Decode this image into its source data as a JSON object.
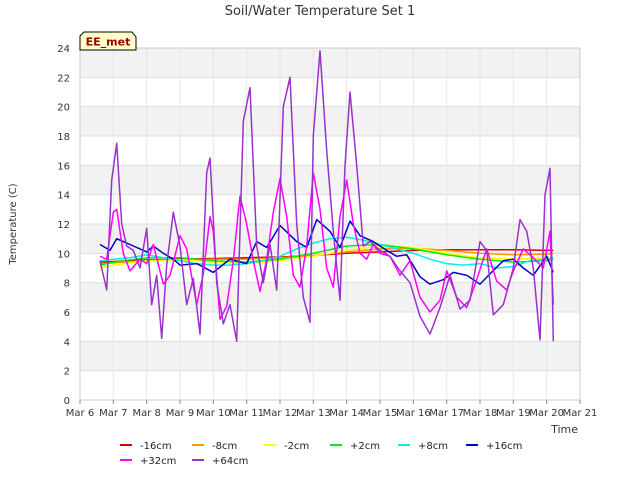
{
  "chart_data": {
    "type": "line",
    "title": "Soil/Water Temperature Set 1",
    "xlabel": "Time",
    "ylabel": "Temperature (C)",
    "xlim": [
      6,
      21
    ],
    "ylim": [
      0,
      24
    ],
    "x_ticks": [
      6,
      7,
      8,
      9,
      10,
      11,
      12,
      13,
      14,
      15,
      16,
      17,
      18,
      19,
      20,
      21
    ],
    "x_tick_labels": [
      "Mar 6",
      "Mar 7",
      "Mar 8",
      "Mar 9",
      "Mar 10",
      "Mar 11",
      "Mar 12",
      "Mar 13",
      "Mar 14",
      "Mar 15",
      "Mar 16",
      "Mar 17",
      "Mar 18",
      "Mar 19",
      "Mar 20",
      "Mar 21"
    ],
    "y_ticks": [
      0,
      2,
      4,
      6,
      8,
      10,
      12,
      14,
      16,
      18,
      20,
      22,
      24
    ],
    "grid": true,
    "annotation": "EE_met",
    "legend_position": "bottom",
    "series": [
      {
        "name": "-16cm",
        "color": "#dd0000",
        "x": [
          6.6,
          8,
          9,
          10,
          11,
          12,
          13,
          14,
          15,
          16,
          17,
          18,
          19,
          20,
          20.2
        ],
        "y": [
          9.4,
          9.55,
          9.6,
          9.65,
          9.7,
          9.75,
          9.85,
          10.0,
          10.1,
          10.2,
          10.25,
          10.25,
          10.25,
          10.2,
          10.2
        ]
      },
      {
        "name": "-8cm",
        "color": "#ff9900",
        "x": [
          6.6,
          8,
          9,
          10,
          11,
          12,
          13,
          14,
          15,
          16,
          17,
          18,
          19,
          20,
          20.2
        ],
        "y": [
          9.3,
          9.5,
          9.55,
          9.6,
          9.6,
          9.7,
          9.85,
          10.1,
          10.3,
          10.35,
          10.2,
          10.0,
          9.9,
          9.95,
          10.0
        ]
      },
      {
        "name": "-2cm",
        "color": "#ffff00",
        "x": [
          6.6,
          7,
          8,
          9,
          10,
          11,
          12,
          13,
          14,
          15,
          16,
          17,
          18,
          19,
          20,
          20.2
        ],
        "y": [
          9.0,
          9.2,
          9.5,
          9.55,
          9.4,
          9.3,
          9.5,
          9.8,
          10.2,
          10.5,
          10.4,
          10.0,
          9.7,
          9.6,
          9.7,
          9.75
        ]
      },
      {
        "name": "+2cm",
        "color": "#00ee00",
        "x": [
          6.6,
          7,
          8,
          9,
          10,
          11,
          12,
          13,
          14,
          15,
          16,
          17,
          18,
          19,
          20,
          20.2
        ],
        "y": [
          9.2,
          9.4,
          9.7,
          9.7,
          9.5,
          9.4,
          9.6,
          10.0,
          10.5,
          10.6,
          10.3,
          9.9,
          9.6,
          9.4,
          9.5,
          9.6
        ]
      },
      {
        "name": "+8cm",
        "color": "#00eeee",
        "x": [
          6.6,
          7,
          7.5,
          8,
          8.5,
          9,
          9.5,
          10,
          10.5,
          11,
          11.5,
          12,
          12.5,
          13,
          13.5,
          14,
          14.5,
          15,
          15.5,
          16,
          16.5,
          17,
          17.5,
          18,
          18.5,
          19,
          19.5,
          20,
          20.2
        ],
        "y": [
          9.5,
          9.6,
          9.7,
          9.9,
          9.7,
          9.5,
          9.3,
          9.2,
          9.2,
          9.3,
          9.5,
          9.8,
          10.3,
          10.7,
          11.0,
          11.1,
          10.9,
          10.6,
          10.3,
          10.0,
          9.6,
          9.3,
          9.2,
          9.3,
          9.0,
          9.1,
          9.5,
          9.6,
          9.7
        ]
      },
      {
        "name": "+16cm",
        "color": "#0000cc",
        "x": [
          6.6,
          6.9,
          7.1,
          7.5,
          8.0,
          8.2,
          8.5,
          8.8,
          9.0,
          9.5,
          10.0,
          10.5,
          11.0,
          11.3,
          11.6,
          12.0,
          12.5,
          12.8,
          13.1,
          13.5,
          13.8,
          14.1,
          14.4,
          14.8,
          15.2,
          15.5,
          15.8,
          16.2,
          16.5,
          16.9,
          17.2,
          17.6,
          18.0,
          18.3,
          18.7,
          19.0,
          19.3,
          19.6,
          20.0,
          20.2
        ],
        "y": [
          10.6,
          10.2,
          11.0,
          10.6,
          10.1,
          10.5,
          10.0,
          9.6,
          9.2,
          9.3,
          8.7,
          9.6,
          9.3,
          10.8,
          10.4,
          11.9,
          10.8,
          10.4,
          12.3,
          11.5,
          10.4,
          12.2,
          11.2,
          10.8,
          10.2,
          9.8,
          9.9,
          8.4,
          7.9,
          8.2,
          8.7,
          8.5,
          7.9,
          8.6,
          9.5,
          9.6,
          9.0,
          8.5,
          9.8,
          8.7
        ]
      },
      {
        "name": "+32cm",
        "color": "#ff00ff",
        "x": [
          6.6,
          6.8,
          7.0,
          7.1,
          7.3,
          7.5,
          7.8,
          8.0,
          8.2,
          8.5,
          8.7,
          9.0,
          9.2,
          9.5,
          9.7,
          9.9,
          10.0,
          10.2,
          10.4,
          10.6,
          10.8,
          11.0,
          11.2,
          11.4,
          11.6,
          11.8,
          12.0,
          12.2,
          12.4,
          12.6,
          12.8,
          13.0,
          13.2,
          13.4,
          13.6,
          13.8,
          14.0,
          14.2,
          14.4,
          14.6,
          14.8,
          15.0,
          15.3,
          15.6,
          15.9,
          16.2,
          16.5,
          16.8,
          17.0,
          17.3,
          17.6,
          17.9,
          18.2,
          18.5,
          18.8,
          19.0,
          19.3,
          19.6,
          19.9,
          20.1,
          20.2
        ],
        "y": [
          9.8,
          9.6,
          12.8,
          13.0,
          10.0,
          8.8,
          9.6,
          9.3,
          10.6,
          7.9,
          8.5,
          11.2,
          10.3,
          6.5,
          8.6,
          12.5,
          11.5,
          5.5,
          6.4,
          9.5,
          13.9,
          12.0,
          9.5,
          7.4,
          9.6,
          12.8,
          15.1,
          12.5,
          8.5,
          7.7,
          10.5,
          15.5,
          13.0,
          9.0,
          7.7,
          12.5,
          15.0,
          12.0,
          10.0,
          9.6,
          10.6,
          10.0,
          9.8,
          8.5,
          9.5,
          7.0,
          6.0,
          6.8,
          8.8,
          7.0,
          6.3,
          8.2,
          10.3,
          8.1,
          7.5,
          8.8,
          10.3,
          9.7,
          9.0,
          11.5,
          6.5
        ]
      },
      {
        "name": "+64cm",
        "color": "#9932cc",
        "x": [
          6.6,
          6.8,
          6.95,
          7.1,
          7.25,
          7.4,
          7.6,
          7.8,
          8.0,
          8.15,
          8.3,
          8.45,
          8.6,
          8.8,
          9.0,
          9.2,
          9.4,
          9.6,
          9.8,
          9.9,
          10.1,
          10.3,
          10.5,
          10.7,
          10.9,
          11.1,
          11.3,
          11.5,
          11.7,
          11.9,
          12.1,
          12.3,
          12.5,
          12.7,
          12.9,
          13.0,
          13.2,
          13.4,
          13.6,
          13.8,
          13.95,
          14.1,
          14.3,
          14.5,
          14.7,
          15.0,
          15.3,
          15.6,
          15.9,
          16.2,
          16.5,
          16.8,
          17.1,
          17.4,
          17.7,
          18.0,
          18.2,
          18.4,
          18.7,
          19.0,
          19.2,
          19.4,
          19.6,
          19.8,
          19.95,
          20.1,
          20.2
        ],
        "y": [
          9.5,
          7.5,
          15.0,
          17.5,
          12.0,
          10.5,
          10.2,
          9.0,
          11.7,
          6.5,
          8.5,
          4.2,
          9.2,
          12.8,
          10.5,
          6.5,
          8.3,
          4.5,
          15.5,
          16.5,
          8.0,
          5.2,
          6.5,
          4.0,
          19.0,
          21.3,
          10.5,
          8.0,
          10.6,
          7.5,
          20.0,
          22.0,
          12.0,
          7.0,
          5.3,
          18.0,
          23.8,
          17.0,
          11.5,
          6.8,
          16.0,
          21.0,
          16.0,
          10.5,
          10.8,
          10.2,
          9.8,
          8.8,
          8.0,
          5.7,
          4.5,
          6.3,
          8.5,
          6.2,
          6.8,
          10.8,
          10.2,
          5.8,
          6.5,
          9.0,
          12.3,
          11.5,
          9.0,
          4.1,
          14.0,
          15.8,
          4.0
        ]
      }
    ]
  }
}
